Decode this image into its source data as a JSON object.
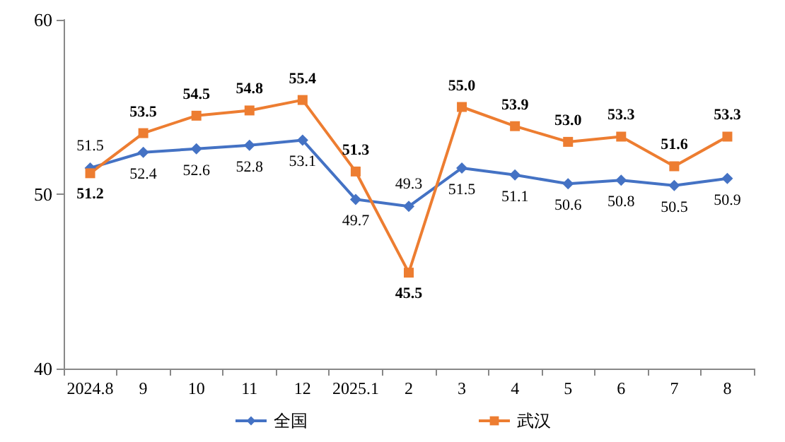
{
  "chart_data": {
    "type": "line",
    "categories": [
      "2024.8",
      "9",
      "10",
      "11",
      "12",
      "2025.1",
      "2",
      "3",
      "4",
      "5",
      "6",
      "7",
      "8"
    ],
    "ylim": [
      40,
      60
    ],
    "yticks": [
      40,
      50,
      60
    ],
    "grid": false,
    "legend": "bottom",
    "series": [
      {
        "name": "全国",
        "color": "#4472c4",
        "marker": "diamond",
        "values": [
          51.5,
          52.4,
          52.6,
          52.8,
          53.1,
          49.7,
          49.3,
          51.5,
          51.1,
          50.6,
          50.8,
          50.5,
          50.9
        ],
        "value_labels": [
          "51.5",
          "52.4",
          "52.6",
          "52.8",
          "53.1",
          "49.7",
          "49.3",
          "51.5",
          "51.1",
          "50.6",
          "50.8",
          "50.5",
          "50.9"
        ]
      },
      {
        "name": "武汉",
        "color": "#ed7d31",
        "marker": "square",
        "values": [
          51.2,
          53.5,
          54.5,
          54.8,
          55.4,
          51.3,
          45.5,
          55.0,
          53.9,
          53.0,
          53.3,
          51.6,
          53.3
        ],
        "value_labels": [
          "51.2",
          "53.5",
          "54.5",
          "54.8",
          "55.4",
          "51.3",
          "45.5",
          "55.0",
          "53.9",
          "53.0",
          "53.3",
          "51.6",
          "53.3"
        ]
      }
    ]
  }
}
